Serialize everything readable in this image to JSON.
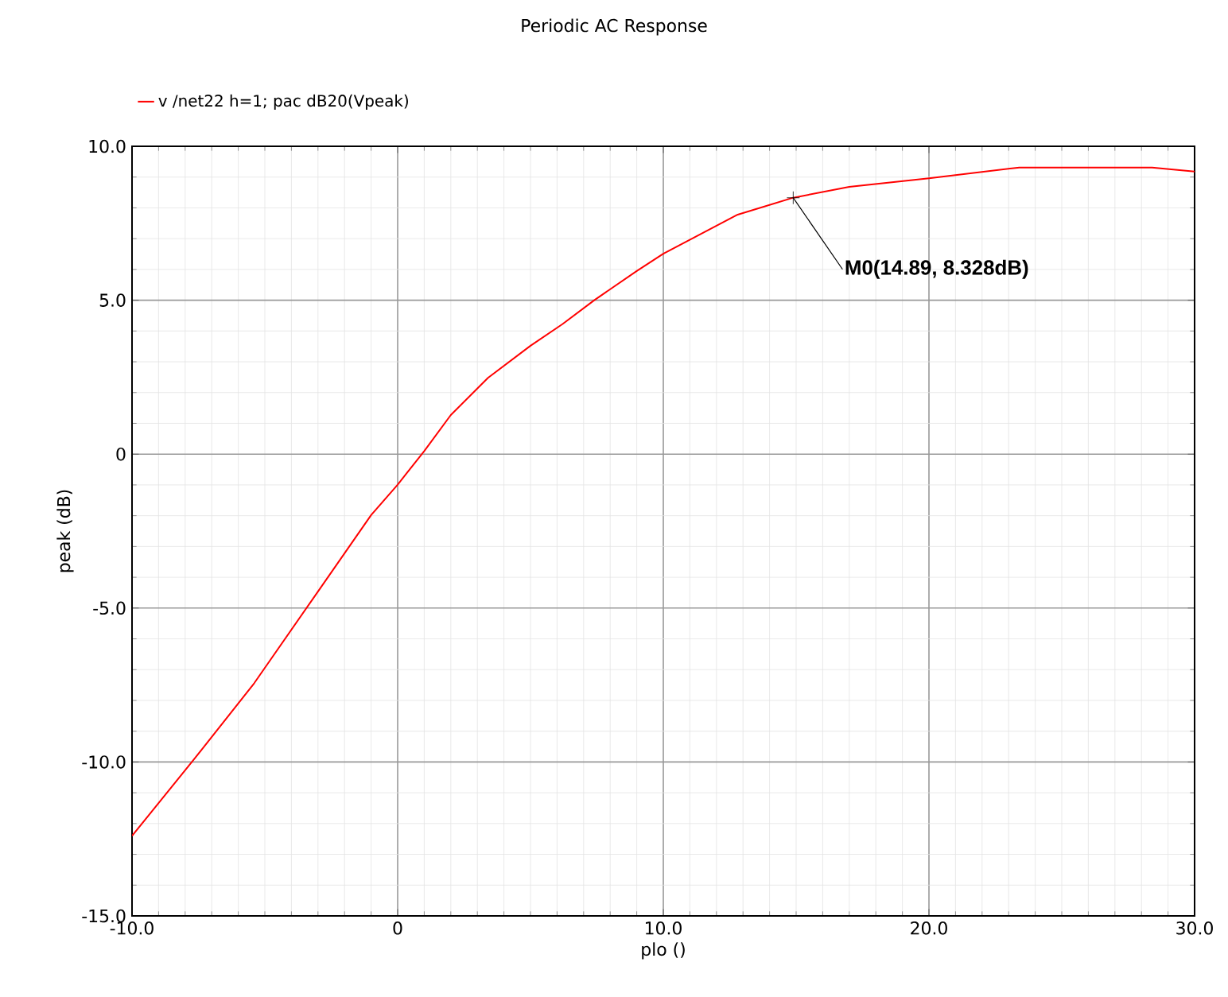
{
  "chart_data": {
    "type": "line",
    "title": "Periodic AC Response",
    "xlabel": "plo ()",
    "ylabel": "peak (dB)",
    "xlim": [
      -10,
      30
    ],
    "ylim": [
      -15,
      10
    ],
    "xticks": [
      {
        "value": -10,
        "label": "-10.0"
      },
      0,
      {
        "value": 10,
        "label": "10.0"
      },
      {
        "value": 20,
        "label": "20.0"
      },
      {
        "value": 30,
        "label": "30.0"
      }
    ],
    "yticks": [
      {
        "value": -15,
        "label": "-15.0"
      },
      {
        "value": -10,
        "label": "-10.0"
      },
      {
        "value": -5,
        "label": "-5.0"
      },
      0,
      {
        "value": 5,
        "label": "5.0"
      },
      {
        "value": 10,
        "label": "10.0"
      }
    ],
    "grid": true,
    "legend": "top left",
    "marker": "none",
    "line_style": "solid",
    "annotations": [
      {
        "text": "M0(14.89, 8.328dB)",
        "x": 14.89,
        "y": 8.328
      }
    ],
    "series": [
      {
        "name": "v /net22 h=1; pac dB20(Vpeak)",
        "color": "#ff0000",
        "x": [
          -10,
          -7.7,
          -5.4,
          -3.2,
          -1,
          0,
          1,
          2,
          3.4,
          5,
          6.2,
          7.4,
          9,
          10,
          12.8,
          14.89,
          17,
          20,
          23.4,
          28.4,
          30
        ],
        "values": [
          -12.4,
          -9.95,
          -7.44,
          -4.71,
          -1.98,
          -0.99,
          0.1,
          1.27,
          2.48,
          3.52,
          4.22,
          5.0,
          5.95,
          6.51,
          7.78,
          8.33,
          8.68,
          8.96,
          9.31,
          9.31,
          9.18
        ]
      }
    ]
  }
}
